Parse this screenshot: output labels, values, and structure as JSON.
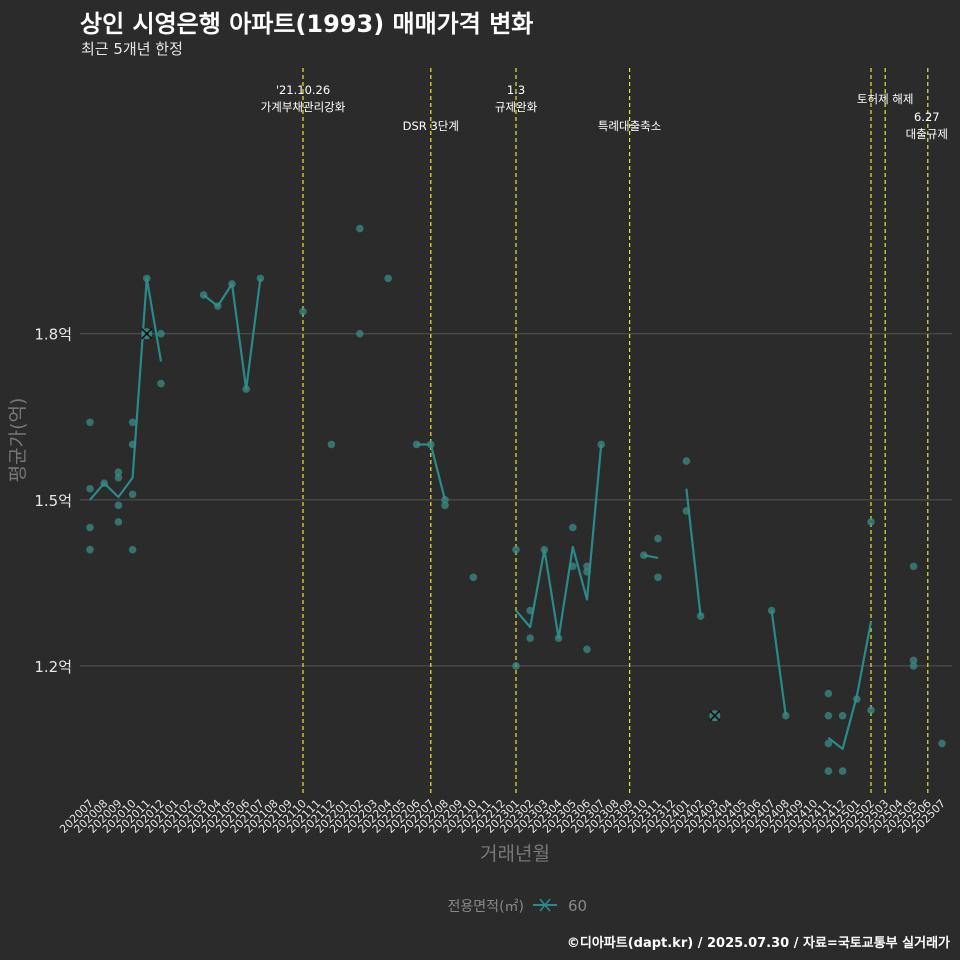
{
  "title": "상인 시영은행 아파트(1993) 매매가격 변화",
  "subtitle": "최근 5개년 한정",
  "footer": "©디아파트(dapt.kr) / 2025.07.30 / 자료=국토교통부 실거래가",
  "colors": {
    "background": "#2b2b2c",
    "line": "#2a8a8a",
    "point": "#3a8c84",
    "event_line": "#e6e633",
    "grid": "#555555"
  },
  "chart_data": {
    "type": "line",
    "title": "상인 시영은행 아파트(1993) 매매가격 변화",
    "xlabel": "거래년월",
    "ylabel": "평균가(억)",
    "ylim": [
      0.965,
      2.28
    ],
    "yticks": [
      1.2,
      1.5,
      1.8
    ],
    "ytick_labels": [
      "1.2억",
      "1.5억",
      "1.8억"
    ],
    "categories": [
      "202007",
      "202008",
      "202009",
      "202010",
      "202011",
      "202012",
      "202101",
      "202102",
      "202103",
      "202104",
      "202105",
      "202106",
      "202107",
      "202108",
      "202109",
      "202110",
      "202111",
      "202112",
      "202201",
      "202202",
      "202203",
      "202204",
      "202205",
      "202206",
      "202207",
      "202208",
      "202209",
      "202210",
      "202211",
      "202212",
      "202301",
      "202302",
      "202303",
      "202304",
      "202305",
      "202306",
      "202307",
      "202308",
      "202309",
      "202310",
      "202311",
      "202312",
      "202401",
      "202402",
      "202403",
      "202404",
      "202405",
      "202406",
      "202407",
      "202408",
      "202409",
      "202410",
      "202411",
      "202412",
      "202501",
      "202502",
      "202503",
      "202504",
      "202505",
      "202506",
      "202507"
    ],
    "legend": {
      "title": "전용면적(㎡)",
      "entries": [
        "60"
      ],
      "position": "bottom"
    },
    "series": [
      {
        "name": "60",
        "line_segments": [
          [
            [
              0,
              1.5
            ],
            [
              1,
              1.53
            ],
            [
              2,
              1.505
            ],
            [
              3,
              1.54
            ],
            [
              4,
              1.9
            ],
            [
              5,
              1.75
            ]
          ],
          [
            [
              8,
              1.87
            ],
            [
              9,
              1.85
            ],
            [
              10,
              1.89
            ],
            [
              11,
              1.7
            ],
            [
              12,
              1.9
            ]
          ],
          [
            [
              23,
              1.6
            ],
            [
              24,
              1.6
            ],
            [
              25,
              1.5
            ]
          ],
          [
            [
              30,
              1.3
            ],
            [
              31,
              1.27
            ],
            [
              32,
              1.41
            ],
            [
              33,
              1.25
            ],
            [
              34,
              1.415
            ],
            [
              35,
              1.32
            ],
            [
              36,
              1.6
            ]
          ],
          [
            [
              39,
              1.4
            ],
            [
              40,
              1.395
            ]
          ],
          [
            [
              42,
              1.52
            ],
            [
              43,
              1.29
            ]
          ],
          [
            [
              48,
              1.3
            ],
            [
              49,
              1.11
            ]
          ],
          [
            [
              52,
              1.07
            ],
            [
              53,
              1.05
            ],
            [
              54,
              1.145
            ],
            [
              55,
              1.28
            ]
          ]
        ],
        "points": [
          [
            0,
            1.52
          ],
          [
            0,
            1.64
          ],
          [
            0,
            1.45
          ],
          [
            0,
            1.41
          ],
          [
            1,
            1.53
          ],
          [
            2,
            1.55
          ],
          [
            2,
            1.54
          ],
          [
            2,
            1.49
          ],
          [
            2,
            1.46
          ],
          [
            3,
            1.64
          ],
          [
            3,
            1.6
          ],
          [
            3,
            1.51
          ],
          [
            3,
            1.41
          ],
          [
            4,
            1.9
          ],
          [
            4,
            1.8
          ],
          [
            5,
            1.8
          ],
          [
            5,
            1.71
          ],
          [
            8,
            1.87
          ],
          [
            9,
            1.85
          ],
          [
            10,
            1.89
          ],
          [
            11,
            1.7
          ],
          [
            12,
            1.9
          ],
          [
            15,
            1.84
          ],
          [
            17,
            1.6
          ],
          [
            19,
            1.99
          ],
          [
            19,
            1.8
          ],
          [
            21,
            1.9
          ],
          [
            23,
            1.6
          ],
          [
            24,
            1.6
          ],
          [
            25,
            1.5
          ],
          [
            25,
            1.49
          ],
          [
            27,
            1.36
          ],
          [
            30,
            1.41
          ],
          [
            30,
            1.2
          ],
          [
            31,
            1.3
          ],
          [
            31,
            1.25
          ],
          [
            32,
            1.41
          ],
          [
            33,
            1.25
          ],
          [
            34,
            1.45
          ],
          [
            34,
            1.38
          ],
          [
            35,
            1.38
          ],
          [
            35,
            1.37
          ],
          [
            35,
            1.23
          ],
          [
            36,
            1.6
          ],
          [
            39,
            1.4
          ],
          [
            40,
            1.43
          ],
          [
            40,
            1.36
          ],
          [
            42,
            1.57
          ],
          [
            42,
            1.48
          ],
          [
            43,
            1.29
          ],
          [
            48,
            1.3
          ],
          [
            49,
            1.11
          ],
          [
            52,
            1.15
          ],
          [
            52,
            1.11
          ],
          [
            52,
            1.06
          ],
          [
            52,
            1.01
          ],
          [
            53,
            1.11
          ],
          [
            53,
            1.01
          ],
          [
            54,
            1.14
          ],
          [
            55,
            1.46
          ],
          [
            55,
            1.12
          ],
          [
            58,
            1.38
          ],
          [
            58,
            1.21
          ],
          [
            58,
            1.2
          ],
          [
            60,
            1.06
          ]
        ],
        "highlighted_points": [
          [
            4,
            1.8
          ],
          [
            44,
            1.11
          ]
        ]
      }
    ],
    "annotations": [
      {
        "x": 15,
        "lines": [
          "'21.10.26",
          "가계부채관리강화"
        ]
      },
      {
        "x": 24,
        "lines": [
          "DSR 3단계"
        ]
      },
      {
        "x": 30,
        "lines": [
          "1.3",
          "규제완화"
        ]
      },
      {
        "x": 38,
        "lines": [
          "특례대출축소"
        ]
      },
      {
        "x": 55,
        "lines": []
      },
      {
        "x": 56,
        "lines": [
          "토허제 해제"
        ]
      },
      {
        "x": 59,
        "lines": [
          "6.27",
          "대출규제"
        ]
      }
    ]
  }
}
